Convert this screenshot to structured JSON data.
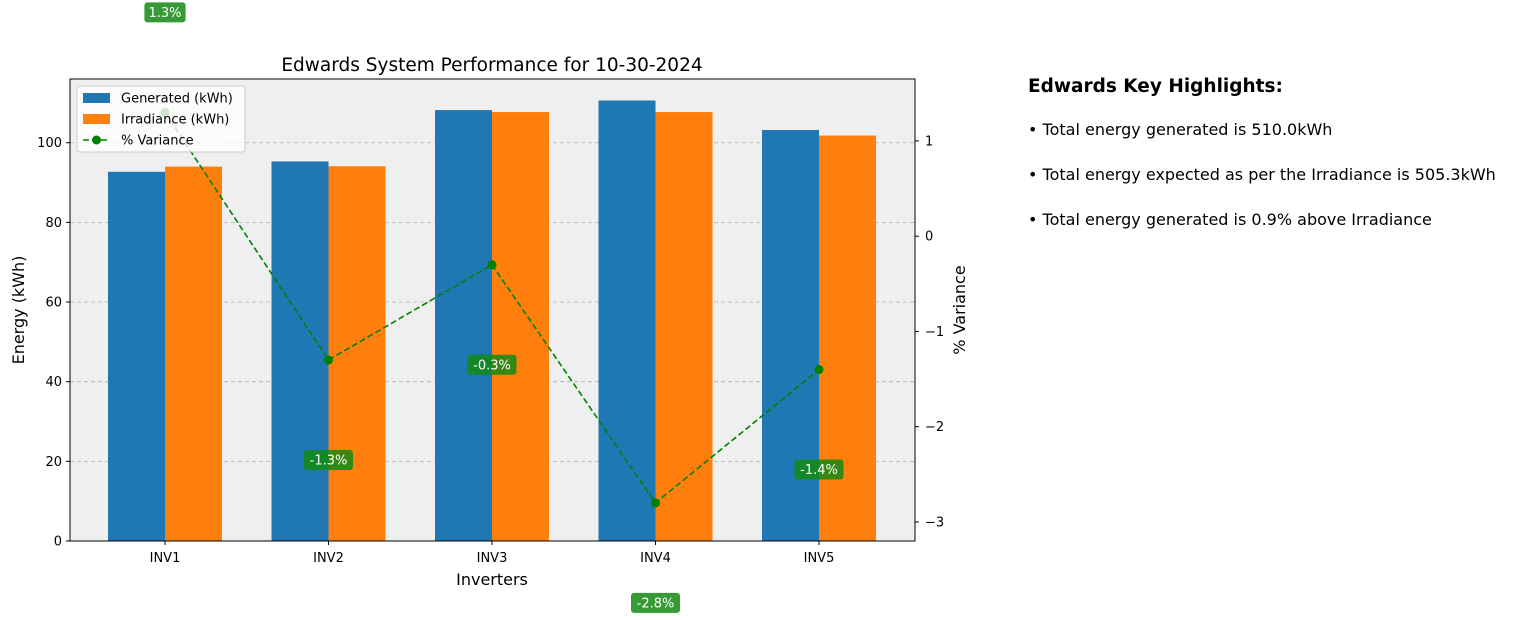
{
  "chart_data": {
    "type": "bar",
    "title": "Edwards System Performance for 10-30-2024",
    "xlabel": "Inverters",
    "ylabel": "Energy (kWh)",
    "y2label": "% Variance",
    "categories": [
      "INV1",
      "INV2",
      "INV3",
      "INV4",
      "INV5"
    ],
    "series": [
      {
        "name": "Generated (kWh)",
        "type": "bar",
        "axis": "left",
        "color": "#1f77b4",
        "values": [
          92.7,
          95.3,
          108.2,
          110.6,
          103.2
        ]
      },
      {
        "name": "Irradiance (kWh)",
        "type": "bar",
        "axis": "left",
        "color": "#ff7f0e",
        "values": [
          94.0,
          94.1,
          107.7,
          107.7,
          101.8
        ]
      },
      {
        "name": "% Variance",
        "type": "line",
        "axis": "right",
        "color": "#008000",
        "style": "dashed",
        "marker": "circle",
        "values": [
          1.3,
          -1.3,
          -0.3,
          -2.8,
          -1.4
        ],
        "labels": [
          "1.3%",
          "-1.3%",
          "-0.3%",
          "-2.8%",
          "-1.4%"
        ]
      }
    ],
    "ylim": [
      0,
      116
    ],
    "y_ticks": [
      0,
      20,
      40,
      60,
      80,
      100
    ],
    "y2lim": [
      -3.2,
      1.65
    ],
    "y2_ticks": [
      1,
      0,
      -1,
      -2,
      -3
    ],
    "grid": "y-dashed",
    "legend_position": "top-left",
    "plot_background": "#efefef",
    "label_box_color": "#138a13"
  },
  "highlights": {
    "title": "Edwards Key Highlights:",
    "items": [
      "• Total energy generated is 510.0kWh",
      "• Total energy expected as per the Irradiance is 505.3kWh",
      "• Total energy generated is 0.9% above Irradiance"
    ]
  }
}
